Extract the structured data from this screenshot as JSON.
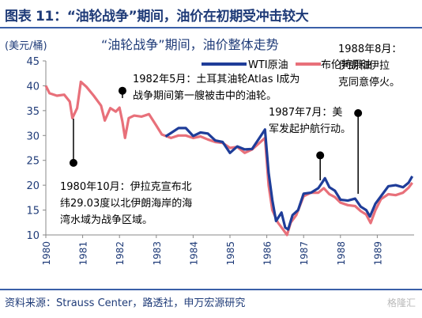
{
  "figure_title": "图表 11：“油轮战争”期间，油价在初期受冲击较大",
  "source_note": "资料来源：Strauss Center，路透社，申万宏源研究",
  "watermark": "格隆汇",
  "colors": {
    "wti": "#1f3d99",
    "brent": "#e8707a",
    "title": "#1f3b78",
    "annotation": "#000000"
  },
  "chart_data": {
    "type": "line",
    "title": "“油轮战争”期间，油价整体走势",
    "ylabel": "(美元/桶)",
    "xlabel": "",
    "xlim": [
      1980,
      1990
    ],
    "ylim": [
      10,
      45
    ],
    "y_ticks": [
      "10",
      "15",
      "20",
      "25",
      "30",
      "35",
      "40",
      "45"
    ],
    "x_ticks": [
      "1980",
      "1981",
      "1982",
      "1983",
      "1984",
      "1985",
      "1986",
      "1987",
      "1988",
      "1989"
    ],
    "legend_position": "top-right",
    "grid": false,
    "series": [
      {
        "name": "WTI原油",
        "points": [
          [
            1983.25,
            29.8
          ],
          [
            1983.4,
            30.5
          ],
          [
            1983.6,
            31.5
          ],
          [
            1983.8,
            31.5
          ],
          [
            1984.0,
            29.9
          ],
          [
            1984.2,
            30.6
          ],
          [
            1984.4,
            30.4
          ],
          [
            1984.6,
            29.0
          ],
          [
            1984.8,
            28.7
          ],
          [
            1985.0,
            26.5
          ],
          [
            1985.2,
            27.8
          ],
          [
            1985.4,
            27.2
          ],
          [
            1985.6,
            27.3
          ],
          [
            1985.8,
            29.5
          ],
          [
            1985.95,
            31.2
          ],
          [
            1986.05,
            22.5
          ],
          [
            1986.15,
            17.0
          ],
          [
            1986.25,
            12.8
          ],
          [
            1986.4,
            14.5
          ],
          [
            1986.5,
            11.5
          ],
          [
            1986.58,
            11.1
          ],
          [
            1986.7,
            14.0
          ],
          [
            1986.85,
            15.0
          ],
          [
            1987.0,
            18.3
          ],
          [
            1987.2,
            18.5
          ],
          [
            1987.4,
            19.4
          ],
          [
            1987.5,
            20.5
          ],
          [
            1987.58,
            21.4
          ],
          [
            1987.7,
            19.6
          ],
          [
            1987.85,
            18.9
          ],
          [
            1988.0,
            17.1
          ],
          [
            1988.2,
            16.9
          ],
          [
            1988.4,
            17.3
          ],
          [
            1988.55,
            15.7
          ],
          [
            1988.7,
            15.0
          ],
          [
            1988.8,
            13.7
          ],
          [
            1988.95,
            16.3
          ],
          [
            1989.1,
            17.8
          ],
          [
            1989.3,
            19.8
          ],
          [
            1989.5,
            20.0
          ],
          [
            1989.7,
            19.6
          ],
          [
            1989.85,
            20.5
          ],
          [
            1989.95,
            21.8
          ]
        ]
      },
      {
        "name": "布伦特原油",
        "points": [
          [
            1980.0,
            40.0
          ],
          [
            1980.1,
            38.5
          ],
          [
            1980.3,
            38.0
          ],
          [
            1980.5,
            38.2
          ],
          [
            1980.65,
            36.8
          ],
          [
            1980.72,
            33.5
          ],
          [
            1980.85,
            35.5
          ],
          [
            1980.95,
            40.8
          ],
          [
            1981.1,
            39.8
          ],
          [
            1981.3,
            38.0
          ],
          [
            1981.5,
            36.0
          ],
          [
            1981.6,
            33.0
          ],
          [
            1981.75,
            35.5
          ],
          [
            1981.9,
            34.8
          ],
          [
            1982.0,
            35.6
          ],
          [
            1982.08,
            32.8
          ],
          [
            1982.15,
            29.5
          ],
          [
            1982.25,
            33.5
          ],
          [
            1982.4,
            34.0
          ],
          [
            1982.6,
            33.8
          ],
          [
            1982.8,
            34.3
          ],
          [
            1983.0,
            32.0
          ],
          [
            1983.15,
            30.2
          ],
          [
            1983.4,
            29.5
          ],
          [
            1983.6,
            30.0
          ],
          [
            1983.8,
            30.0
          ],
          [
            1984.0,
            29.5
          ],
          [
            1984.2,
            29.8
          ],
          [
            1984.4,
            29.2
          ],
          [
            1984.6,
            28.7
          ],
          [
            1984.8,
            28.5
          ],
          [
            1985.0,
            27.5
          ],
          [
            1985.2,
            27.7
          ],
          [
            1985.4,
            26.5
          ],
          [
            1985.6,
            27.2
          ],
          [
            1985.8,
            28.5
          ],
          [
            1985.95,
            29.5
          ],
          [
            1986.05,
            20.0
          ],
          [
            1986.15,
            15.0
          ],
          [
            1986.3,
            12.5
          ],
          [
            1986.45,
            11.0
          ],
          [
            1986.55,
            10.0
          ],
          [
            1986.65,
            12.5
          ],
          [
            1986.8,
            14.0
          ],
          [
            1987.0,
            17.8
          ],
          [
            1987.2,
            18.5
          ],
          [
            1987.4,
            18.5
          ],
          [
            1987.55,
            19.4
          ],
          [
            1987.7,
            18.2
          ],
          [
            1987.85,
            17.6
          ],
          [
            1988.0,
            16.5
          ],
          [
            1988.2,
            16.0
          ],
          [
            1988.4,
            15.8
          ],
          [
            1988.55,
            14.8
          ],
          [
            1988.7,
            14.1
          ],
          [
            1988.82,
            12.4
          ],
          [
            1988.95,
            15.0
          ],
          [
            1989.1,
            17.2
          ],
          [
            1989.3,
            18.2
          ],
          [
            1989.5,
            18.0
          ],
          [
            1989.7,
            18.5
          ],
          [
            1989.85,
            19.5
          ],
          [
            1989.95,
            20.5
          ]
        ]
      }
    ],
    "annotations": [
      {
        "text": [
          "1982年5月：土耳其油轮Atlas I成为",
          "战争期间第一艘被击中的油轮。"
        ],
        "marker": [
          1982.08,
          39.0
        ]
      },
      {
        "text": [
          "1980年10月：伊拉克宣布北",
          "纬29.03度以北伊朗海岸的海",
          "湾水域为战争区域。"
        ],
        "marker": [
          1980.75,
          24.5
        ]
      },
      {
        "text": [
          "1987年7月：美",
          "军发起护航行动。"
        ],
        "marker": [
          1987.45,
          26.0
        ]
      },
      {
        "text": [
          "1988年8月：",
          "伊朗和伊拉",
          "克同意停火。"
        ],
        "marker": [
          1988.48,
          34.5
        ]
      }
    ]
  }
}
